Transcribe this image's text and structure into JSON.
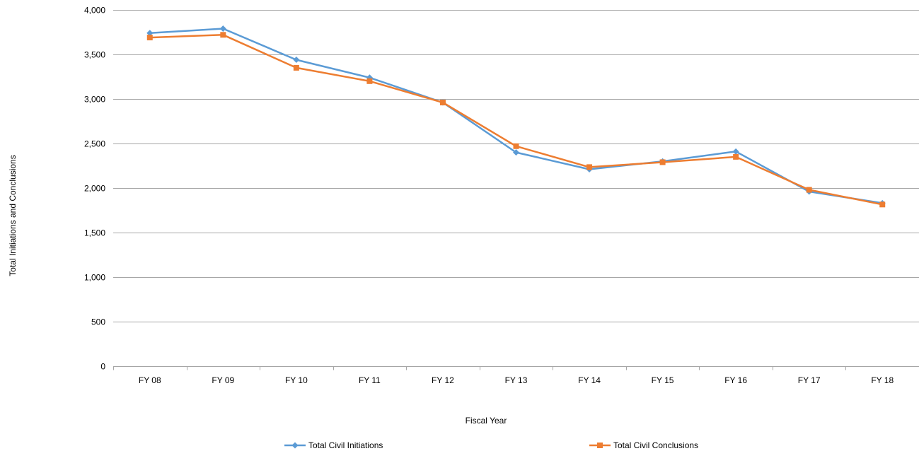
{
  "chart_data": {
    "type": "line",
    "title": "",
    "xlabel": "Fiscal Year",
    "ylabel": "Total Initiations and Conclusions",
    "categories": [
      "FY 08",
      "FY 09",
      "FY 10",
      "FY 11",
      "FY 12",
      "FY 13",
      "FY 14",
      "FY 15",
      "FY 16",
      "FY 17",
      "FY 18"
    ],
    "ylim": [
      0,
      4000
    ],
    "yticks": [
      0,
      500,
      1000,
      1500,
      2000,
      2500,
      3000,
      3500,
      4000
    ],
    "ytick_labels": [
      "0",
      "500",
      "1,000",
      "1,500",
      "2,000",
      "2,500",
      "3,000",
      "3,500",
      "4,000"
    ],
    "grid": true,
    "legend_position": "bottom",
    "series": [
      {
        "name": "Total Civil Initiations",
        "color": "#5b9bd5",
        "marker": "diamond",
        "values": [
          3740,
          3790,
          3440,
          3240,
          2960,
          2400,
          2210,
          2300,
          2410,
          1960,
          1830
        ]
      },
      {
        "name": "Total Civil Conclusions",
        "color": "#ed7d31",
        "marker": "square",
        "values": [
          3690,
          3720,
          3350,
          3200,
          2960,
          2470,
          2235,
          2290,
          2350,
          1980,
          1815
        ]
      }
    ]
  }
}
